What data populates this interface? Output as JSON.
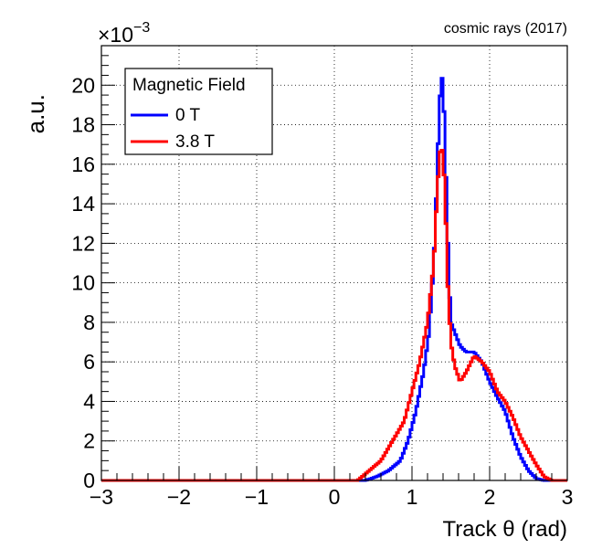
{
  "chart_data": {
    "type": "histogram",
    "title": "",
    "top_right_label": "cosmic rays (2017)",
    "xlabel": "Track θ (rad)",
    "ylabel": "a.u.",
    "y_multiplier_base": "×10",
    "y_multiplier_exponent": "−3",
    "xlim": [
      -3,
      3
    ],
    "ylim": [
      0,
      0.022
    ],
    "x_ticks": [
      -3,
      -2,
      -1,
      0,
      1,
      2,
      3
    ],
    "x_tick_labels": [
      "−3",
      "−2",
      "−1",
      "0",
      "1",
      "2",
      "3"
    ],
    "y_ticks": [
      0,
      0.002,
      0.004,
      0.006,
      0.008,
      0.01,
      0.012,
      0.014,
      0.016,
      0.018,
      0.02
    ],
    "y_tick_labels": [
      "0",
      "2",
      "4",
      "6",
      "8",
      "10",
      "12",
      "14",
      "16",
      "18",
      "20"
    ],
    "grid": true,
    "legend": {
      "title": "Magnetic Field",
      "placement": "top-left"
    },
    "series": [
      {
        "name": "0 T",
        "color": "#0000ff",
        "points": [
          [
            0.4,
            0.0
          ],
          [
            0.55,
            0.0002
          ],
          [
            0.7,
            0.0005
          ],
          [
            0.85,
            0.001
          ],
          [
            0.95,
            0.002
          ],
          [
            1.05,
            0.0035
          ],
          [
            1.15,
            0.0055
          ],
          [
            1.22,
            0.0075
          ],
          [
            1.28,
            0.011
          ],
          [
            1.32,
            0.015
          ],
          [
            1.35,
            0.0185
          ],
          [
            1.38,
            0.0208
          ],
          [
            1.41,
            0.019
          ],
          [
            1.44,
            0.015
          ],
          [
            1.47,
            0.011
          ],
          [
            1.5,
            0.008
          ],
          [
            1.55,
            0.0075
          ],
          [
            1.62,
            0.0068
          ],
          [
            1.7,
            0.0065
          ],
          [
            1.8,
            0.0065
          ],
          [
            1.9,
            0.006
          ],
          [
            2.0,
            0.005
          ],
          [
            2.1,
            0.0042
          ],
          [
            2.2,
            0.0035
          ],
          [
            2.3,
            0.0022
          ],
          [
            2.4,
            0.0012
          ],
          [
            2.5,
            0.0005
          ],
          [
            2.6,
            0.0001
          ],
          [
            2.7,
            0.0
          ]
        ]
      },
      {
        "name": "3.8 T",
        "color": "#ff0000",
        "points": [
          [
            0.3,
            0.0
          ],
          [
            0.45,
            0.0005
          ],
          [
            0.6,
            0.001
          ],
          [
            0.75,
            0.002
          ],
          [
            0.9,
            0.003
          ],
          [
            1.0,
            0.0045
          ],
          [
            1.1,
            0.006
          ],
          [
            1.2,
            0.008
          ],
          [
            1.28,
            0.011
          ],
          [
            1.33,
            0.015
          ],
          [
            1.37,
            0.017
          ],
          [
            1.4,
            0.0165
          ],
          [
            1.43,
            0.014
          ],
          [
            1.46,
            0.01
          ],
          [
            1.5,
            0.007
          ],
          [
            1.55,
            0.0058
          ],
          [
            1.62,
            0.005
          ],
          [
            1.7,
            0.0055
          ],
          [
            1.8,
            0.0063
          ],
          [
            1.9,
            0.006
          ],
          [
            2.0,
            0.0055
          ],
          [
            2.1,
            0.0045
          ],
          [
            2.2,
            0.004
          ],
          [
            2.3,
            0.0032
          ],
          [
            2.4,
            0.0022
          ],
          [
            2.5,
            0.0015
          ],
          [
            2.6,
            0.0008
          ],
          [
            2.7,
            0.0002
          ],
          [
            2.8,
            0.0
          ]
        ]
      }
    ]
  }
}
